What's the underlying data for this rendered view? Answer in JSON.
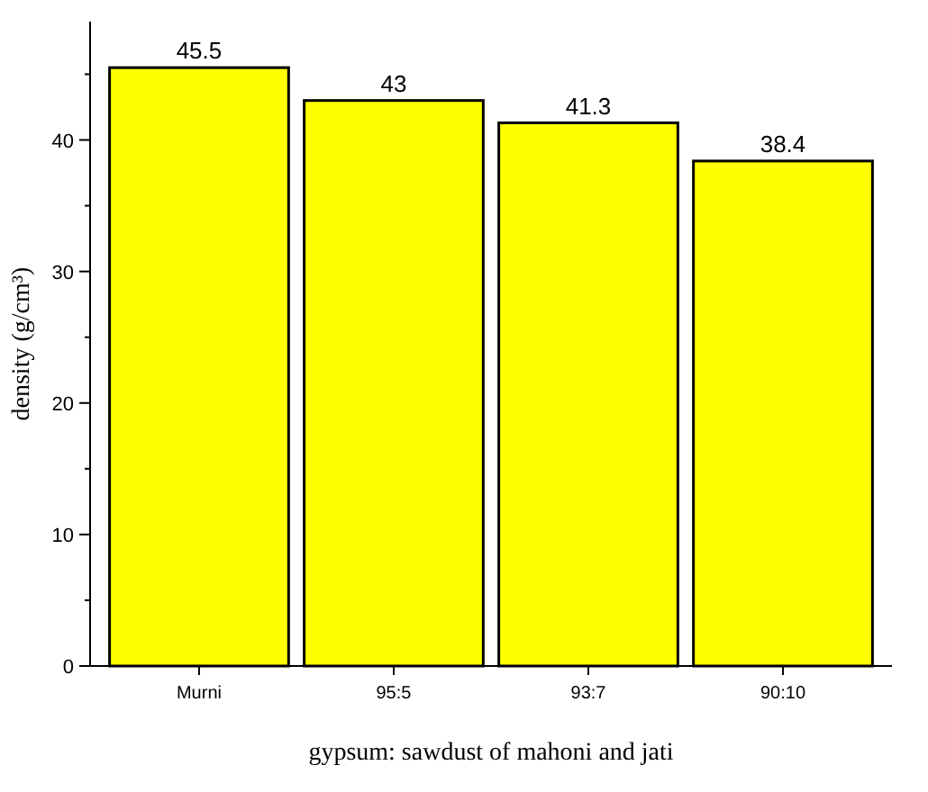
{
  "chart_data": {
    "type": "bar",
    "xlabel": "gypsum: sawdust of mahoni and jati",
    "ylabel": "density (g/cm³)",
    "categories": [
      "Murni",
      "95:5",
      "93:7",
      "90:10"
    ],
    "values": [
      45.5,
      43,
      41.3,
      38.4
    ],
    "color": "#ffff00",
    "ylim": [
      0,
      49
    ],
    "yticks": [
      0,
      {
        "value": 5,
        "label": null
      },
      10,
      {
        "value": 15,
        "label": null
      },
      20,
      {
        "value": 25,
        "label": null
      },
      30,
      {
        "value": 35,
        "label": null
      },
      40,
      {
        "value": 45,
        "label": null
      }
    ],
    "data_labels": true,
    "grid": false
  }
}
